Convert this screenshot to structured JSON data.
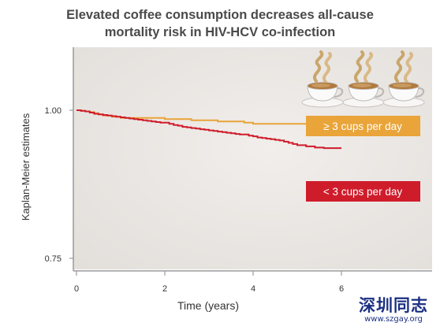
{
  "title_lines": [
    "Elevated coffee consumption decreases all-cause",
    "mortality risk in HIV-HCV co-infection"
  ],
  "chart_data": {
    "type": "line",
    "title": "Elevated coffee consumption decreases all-cause mortality risk in HIV-HCV co-infection",
    "xlabel": "Time (years)",
    "ylabel": "Kaplan-Meier estimates",
    "xlim": [
      0,
      6
    ],
    "ylim": [
      0.75,
      1.0
    ],
    "x_ticks": [
      0,
      2,
      4,
      6
    ],
    "y_ticks": [
      1.0,
      0.75
    ],
    "x_tick_labels": [
      "0",
      "2",
      "4",
      "6"
    ],
    "y_tick_labels": [
      "1.00",
      "0.75"
    ],
    "grid": false,
    "series": [
      {
        "name": "≥ 3 cups per day",
        "color": "#e9a43a",
        "x": [
          0,
          0.1,
          0.2,
          0.3,
          0.4,
          0.5,
          0.6,
          0.8,
          1.0,
          1.5,
          2.0,
          2.5,
          2.6,
          3.0,
          3.2,
          3.5,
          3.8,
          4.0,
          4.5,
          5.0,
          5.5,
          6.0
        ],
        "y": [
          1.0,
          0.999,
          0.998,
          0.997,
          0.995,
          0.993,
          0.991,
          0.989,
          0.987,
          0.987,
          0.985,
          0.985,
          0.983,
          0.983,
          0.981,
          0.981,
          0.979,
          0.977,
          0.977,
          0.977,
          0.971,
          0.971
        ]
      },
      {
        "name": "< 3 cups per day",
        "color": "#cf1c2b",
        "x": [
          0,
          0.1,
          0.2,
          0.3,
          0.4,
          0.5,
          0.6,
          0.7,
          0.8,
          0.9,
          1.0,
          1.1,
          1.2,
          1.3,
          1.4,
          1.5,
          1.6,
          1.7,
          1.8,
          1.9,
          2.0,
          2.1,
          2.2,
          2.3,
          2.4,
          2.5,
          2.6,
          2.7,
          2.8,
          2.9,
          3.0,
          3.1,
          3.2,
          3.3,
          3.4,
          3.5,
          3.6,
          3.7,
          3.8,
          3.9,
          4.0,
          4.1,
          4.2,
          4.3,
          4.4,
          4.5,
          4.6,
          4.7,
          4.8,
          4.9,
          5.0,
          5.2,
          5.4,
          5.6,
          5.8,
          6.0
        ],
        "y": [
          1.0,
          0.999,
          0.998,
          0.996,
          0.994,
          0.993,
          0.992,
          0.991,
          0.99,
          0.989,
          0.988,
          0.987,
          0.986,
          0.985,
          0.984,
          0.983,
          0.982,
          0.981,
          0.98,
          0.979,
          0.979,
          0.977,
          0.975,
          0.974,
          0.972,
          0.971,
          0.97,
          0.969,
          0.968,
          0.967,
          0.966,
          0.965,
          0.964,
          0.963,
          0.962,
          0.961,
          0.96,
          0.959,
          0.959,
          0.957,
          0.956,
          0.954,
          0.953,
          0.952,
          0.951,
          0.95,
          0.949,
          0.947,
          0.945,
          0.943,
          0.941,
          0.939,
          0.937,
          0.936,
          0.936,
          0.936
        ]
      }
    ],
    "legend": [
      {
        "label": "≥ 3 cups per day",
        "color": "#e9a43a"
      },
      {
        "label": "< 3 cups per day",
        "color": "#cf1c2b"
      }
    ]
  },
  "decoration": {
    "icons": [
      "coffee-cup-icon",
      "coffee-cup-icon",
      "coffee-cup-icon"
    ],
    "plot_background": "#ebe7e4"
  },
  "watermark": {
    "text": "深圳同志",
    "url": "www.szgay.org"
  }
}
